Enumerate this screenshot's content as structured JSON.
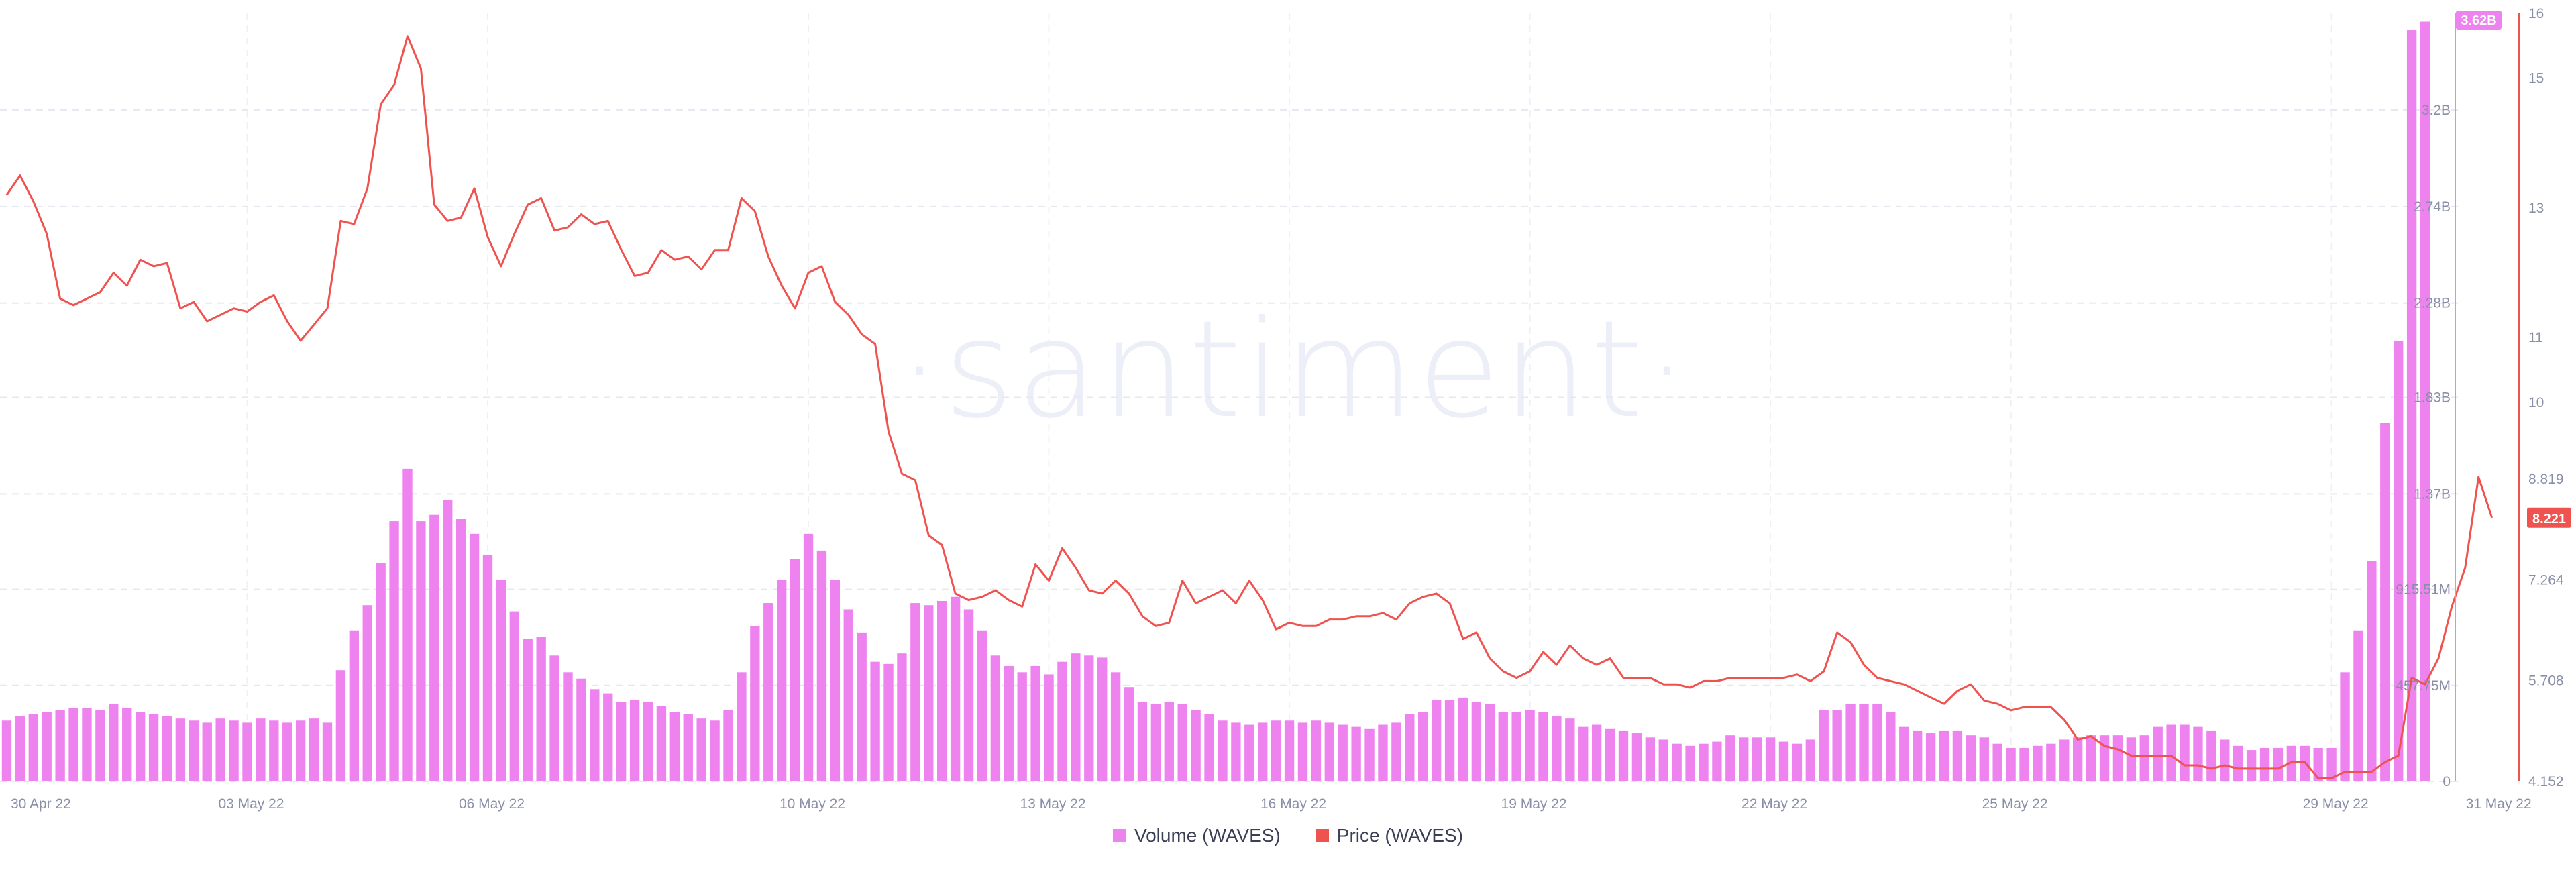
{
  "watermark": "·santiment·",
  "legend": [
    {
      "label": "Volume (WAVES)",
      "color": "#ee82ee"
    },
    {
      "label": "Price (WAVES)",
      "color": "#ef5350"
    }
  ],
  "chart_data": {
    "type": "bar",
    "grid": true,
    "legend_position": "bottom-center",
    "x_tick_labels": [
      "30 Apr 22",
      "03 May 22",
      "06 May 22",
      "10 May 22",
      "13 May 22",
      "16 May 22",
      "19 May 22",
      "22 May 22",
      "25 May 22",
      "29 May 22",
      "31 May 22"
    ],
    "volume_axis": {
      "tick_values": [
        0,
        457750000,
        915510000,
        1370000000,
        1830000000,
        2280000000,
        2740000000,
        3200000000
      ],
      "tick_labels": [
        "0",
        "457.75M",
        "915.51M",
        "1.37B",
        "1.83B",
        "2.28B",
        "2.74B",
        "3.2B"
      ],
      "range": [
        0,
        3660000000
      ],
      "current_label": "3.62B",
      "color": "#ee82ee"
    },
    "price_axis": {
      "tick_values": [
        4.152,
        5.708,
        7.264,
        8.819,
        10,
        11,
        13,
        15,
        16
      ],
      "tick_labels": [
        "4.152",
        "5.708",
        "7.264",
        "8.819",
        "10",
        "11",
        "13",
        "15",
        "16"
      ],
      "range": [
        4.152,
        16
      ],
      "current_label": "8.221",
      "color": "#ef5350"
    },
    "series": [
      {
        "name": "Volume (WAVES)",
        "type": "bar",
        "axis": "left",
        "color": "#ee82ee",
        "values": [
          0.29,
          0.31,
          0.32,
          0.33,
          0.34,
          0.35,
          0.35,
          0.34,
          0.37,
          0.35,
          0.33,
          0.32,
          0.31,
          0.3,
          0.29,
          0.28,
          0.3,
          0.29,
          0.28,
          0.3,
          0.29,
          0.28,
          0.29,
          0.3,
          0.28,
          0.53,
          0.72,
          0.84,
          1.04,
          1.24,
          1.49,
          1.24,
          1.27,
          1.34,
          1.25,
          1.18,
          1.08,
          0.96,
          0.81,
          0.68,
          0.69,
          0.6,
          0.52,
          0.49,
          0.44,
          0.42,
          0.38,
          0.39,
          0.38,
          0.36,
          0.33,
          0.32,
          0.3,
          0.29,
          0.34,
          0.52,
          0.74,
          0.85,
          0.96,
          1.06,
          1.18,
          1.1,
          0.96,
          0.82,
          0.71,
          0.57,
          0.56,
          0.61,
          0.85,
          0.84,
          0.86,
          0.88,
          0.82,
          0.72,
          0.6,
          0.55,
          0.52,
          0.55,
          0.51,
          0.57,
          0.61,
          0.6,
          0.59,
          0.52,
          0.45,
          0.38,
          0.37,
          0.38,
          0.37,
          0.34,
          0.32,
          0.29,
          0.28,
          0.27,
          0.28,
          0.29,
          0.29,
          0.28,
          0.29,
          0.28,
          0.27,
          0.26,
          0.25,
          0.27,
          0.28,
          0.32,
          0.33,
          0.39,
          0.39,
          0.4,
          0.38,
          0.37,
          0.33,
          0.33,
          0.34,
          0.33,
          0.31,
          0.3,
          0.26,
          0.27,
          0.25,
          0.24,
          0.23,
          0.21,
          0.2,
          0.18,
          0.17,
          0.18,
          0.19,
          0.22,
          0.21,
          0.21,
          0.21,
          0.19,
          0.18,
          0.2,
          0.34,
          0.34,
          0.37,
          0.37,
          0.37,
          0.33,
          0.26,
          0.24,
          0.23,
          0.24,
          0.24,
          0.22,
          0.21,
          0.18,
          0.16,
          0.16,
          0.17,
          0.18,
          0.2,
          0.21,
          0.22,
          0.22,
          0.22,
          0.21,
          0.22,
          0.26,
          0.27,
          0.27,
          0.26,
          0.24,
          0.2,
          0.17,
          0.15,
          0.16,
          0.16,
          0.17,
          0.17,
          0.16,
          0.16,
          0.52,
          0.72,
          1.05,
          1.71,
          2.1,
          3.58,
          3.62
        ]
      },
      {
        "name": "Price (WAVES)",
        "type": "line",
        "axis": "right",
        "color": "#ef5350",
        "values": [
          13.2,
          13.5,
          13.1,
          12.6,
          11.6,
          11.5,
          11.6,
          11.7,
          12.0,
          11.8,
          12.2,
          12.1,
          12.15,
          11.45,
          11.55,
          11.25,
          11.35,
          11.45,
          11.4,
          11.55,
          11.65,
          11.25,
          10.95,
          11.2,
          11.45,
          12.8,
          12.75,
          13.3,
          14.6,
          14.9,
          15.65,
          15.15,
          13.05,
          12.8,
          12.85,
          13.3,
          12.55,
          12.1,
          12.6,
          13.05,
          13.15,
          12.65,
          12.7,
          12.9,
          12.75,
          12.8,
          12.35,
          11.95,
          12.0,
          12.35,
          12.2,
          12.25,
          12.05,
          12.35,
          12.35,
          13.15,
          12.95,
          12.25,
          11.8,
          11.45,
          12.0,
          12.1,
          11.55,
          11.35,
          11.05,
          10.9,
          9.55,
          8.9,
          8.8,
          7.95,
          7.8,
          7.05,
          6.95,
          7.0,
          7.1,
          6.95,
          6.85,
          7.5,
          7.25,
          7.75,
          7.45,
          7.1,
          7.05,
          7.25,
          7.05,
          6.7,
          6.55,
          6.6,
          7.25,
          6.9,
          7.0,
          7.1,
          6.9,
          7.25,
          6.95,
          6.5,
          6.6,
          6.55,
          6.55,
          6.65,
          6.65,
          6.7,
          6.7,
          6.75,
          6.65,
          6.9,
          7.0,
          7.05,
          6.9,
          6.35,
          6.45,
          6.05,
          5.85,
          5.75,
          5.85,
          6.15,
          5.95,
          6.25,
          6.05,
          5.95,
          6.05,
          5.75,
          5.75,
          5.75,
          5.65,
          5.65,
          5.6,
          5.7,
          5.7,
          5.75,
          5.75,
          5.75,
          5.75,
          5.75,
          5.8,
          5.7,
          5.85,
          6.45,
          6.3,
          5.95,
          5.75,
          5.7,
          5.65,
          5.55,
          5.45,
          5.35,
          5.55,
          5.65,
          5.4,
          5.35,
          5.25,
          5.3,
          5.3,
          5.3,
          5.1,
          4.8,
          4.85,
          4.7,
          4.65,
          4.55,
          4.55,
          4.55,
          4.55,
          4.4,
          4.4,
          4.35,
          4.4,
          4.35,
          4.35,
          4.35,
          4.35,
          4.45,
          4.45,
          4.2,
          4.2,
          4.3,
          4.3,
          4.3,
          4.45,
          4.55,
          5.75,
          5.65,
          6.05,
          6.85,
          7.45,
          8.85,
          8.221
        ]
      }
    ]
  }
}
